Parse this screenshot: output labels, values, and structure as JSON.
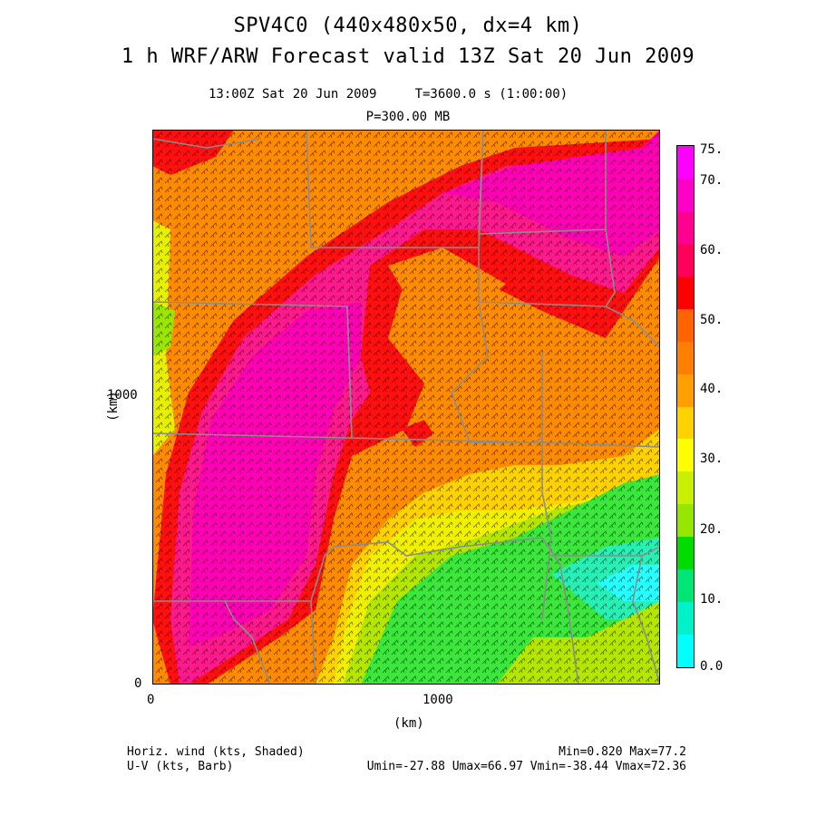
{
  "title": {
    "line1": "SPV4C0 (440x480x50, dx=4 km)",
    "line2": "1 h WRF/ARW Forecast valid 13Z Sat 20 Jun 2009"
  },
  "subtitle": {
    "time_line": "13:00Z Sat 20 Jun 2009     T=3600.0 s (1:00:00)",
    "level_line": "P=300.00 MB"
  },
  "axes": {
    "x_label": "(km)",
    "y_label": "(km)",
    "x_ticks": [
      "0",
      "1000"
    ],
    "y_ticks": [
      "0",
      "1000"
    ]
  },
  "colorbar": {
    "labels": [
      "0.0",
      "10.",
      "20.",
      "30.",
      "40.",
      "50.",
      "60.",
      "70.",
      "75."
    ],
    "colors": [
      "#00ffff",
      "#00f2c8",
      "#00e676",
      "#00dc00",
      "#96e600",
      "#c8f000",
      "#ffff00",
      "#ffd200",
      "#ffa000",
      "#ff8000",
      "#ff6400",
      "#ff0000",
      "#ff005a",
      "#ff0090",
      "#ff00c8",
      "#ff00ff"
    ]
  },
  "footer": {
    "left_line1": "Horiz. wind (kts, Shaded)",
    "left_line2": "U-V (kts, Barb)",
    "right_line1": "Min=0.820 Max=77.2",
    "right_line2": "Umin=-27.88 Umax=66.97 Vmin=-38.44 Vmax=72.36"
  },
  "map": {
    "fill_colors": {
      "orange": "#ff8c00",
      "red": "#ff1010",
      "pink": "#ff1a8c",
      "magenta": "#ff00b4",
      "yellow": "#f0f000",
      "yellowgreen": "#b4e600",
      "green": "#3ce63c",
      "cyan": "#28ffff",
      "boundary": "#8c8c8c",
      "barb": "#000000"
    }
  }
}
